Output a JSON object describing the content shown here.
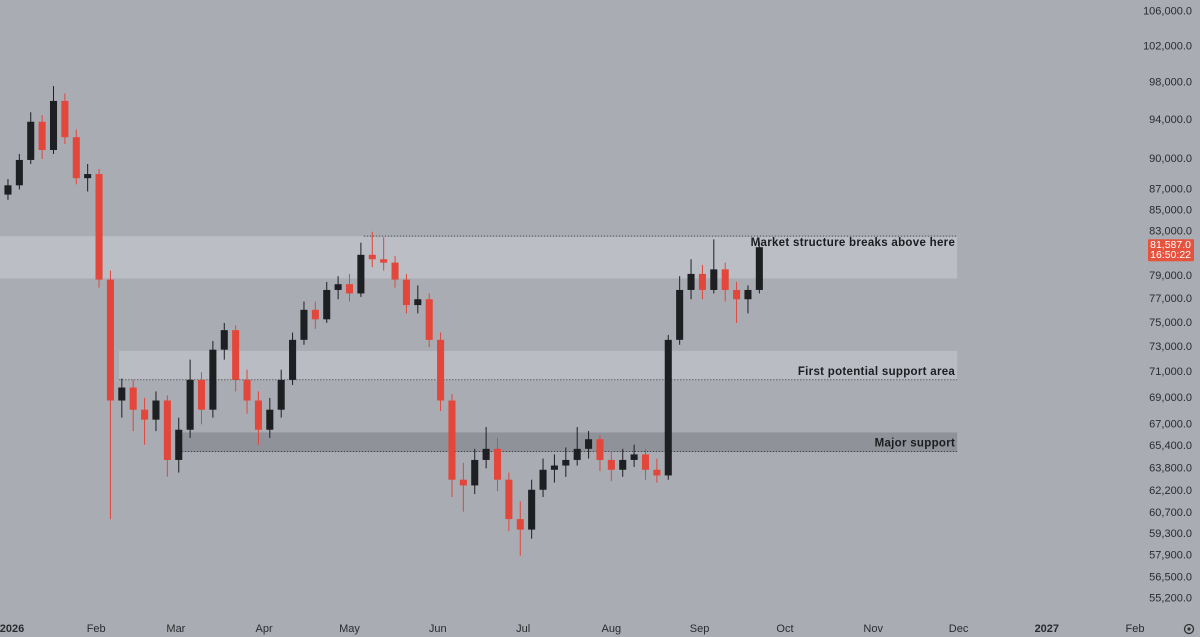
{
  "chart_data": {
    "type": "candlestick",
    "log_scale": true,
    "up_color": "#1e1f22",
    "down_color": "#e3463a",
    "background": "#a9acb3",
    "xlim": [
      -2.8,
      399.5
    ],
    "ylim": [
      53900,
      107400
    ],
    "xticks": [
      {
        "value": 0,
        "label": "2026"
      },
      {
        "value": 31,
        "label": "Feb"
      },
      {
        "value": 59,
        "label": "Mar"
      },
      {
        "value": 90,
        "label": "Apr"
      },
      {
        "value": 120,
        "label": "May"
      },
      {
        "value": 151,
        "label": "Jun"
      },
      {
        "value": 181,
        "label": "Jul"
      },
      {
        "value": 212,
        "label": "Aug"
      },
      {
        "value": 243,
        "label": "Sep"
      },
      {
        "value": 273,
        "label": "Oct"
      },
      {
        "value": 304,
        "label": "Nov"
      },
      {
        "value": 334,
        "label": "Dec"
      },
      {
        "value": 365,
        "label": "2027"
      },
      {
        "value": 396,
        "label": "Feb"
      }
    ],
    "yticks": [
      {
        "value": 106000,
        "label": "106,000.0"
      },
      {
        "value": 102000,
        "label": "102,000.0"
      },
      {
        "value": 98000,
        "label": "98,000.0"
      },
      {
        "value": 94000,
        "label": "94,000.0"
      },
      {
        "value": 90000,
        "label": "90,000.0"
      },
      {
        "value": 87000,
        "label": "87,000.0"
      },
      {
        "value": 85000,
        "label": "85,000.0"
      },
      {
        "value": 83000,
        "label": "83,000.0"
      },
      {
        "value": 79000,
        "label": "79,000.0"
      },
      {
        "value": 77000,
        "label": "77,000.0"
      },
      {
        "value": 75000,
        "label": "75,000.0"
      },
      {
        "value": 73000,
        "label": "73,000.0"
      },
      {
        "value": 71000,
        "label": "71,000.0"
      },
      {
        "value": 69000,
        "label": "69,000.0"
      },
      {
        "value": 67000,
        "label": "67,000.0"
      },
      {
        "value": 65400,
        "label": "65,400.0"
      },
      {
        "value": 63800,
        "label": "63,800.0"
      },
      {
        "value": 62200,
        "label": "62,200.0"
      },
      {
        "value": 60700,
        "label": "60,700.0"
      },
      {
        "value": 59300,
        "label": "59,300.0"
      },
      {
        "value": 57900,
        "label": "57,900.0"
      },
      {
        "value": 56500,
        "label": "56,500.0"
      },
      {
        "value": 55200,
        "label": "55,200.0"
      }
    ],
    "x": [
      0,
      4,
      8,
      12,
      16,
      20,
      24,
      28,
      32,
      36,
      40,
      44,
      48,
      52,
      56,
      60,
      64,
      68,
      72,
      76,
      80,
      84,
      88,
      92,
      96,
      100,
      104,
      108,
      112,
      116,
      120,
      124,
      128,
      132,
      136,
      140,
      144,
      148,
      152,
      156,
      160,
      164,
      168,
      172,
      176,
      180,
      184,
      188,
      192,
      196,
      200,
      204,
      208,
      212,
      216,
      220,
      224,
      228,
      232,
      236,
      240,
      244,
      248,
      252,
      256,
      260,
      264
    ],
    "open": [
      86500,
      87400,
      89900,
      93800,
      90900,
      96000,
      92200,
      88100,
      88500,
      78700,
      68800,
      69800,
      68100,
      67350,
      68800,
      64400,
      66600,
      70400,
      68100,
      72800,
      74400,
      70400,
      68800,
      66600,
      68100,
      70400,
      73600,
      76100,
      75300,
      77800,
      78300,
      77500,
      80900,
      80500,
      80200,
      78700,
      76500,
      77000,
      73600,
      68800,
      63000,
      62600,
      64400,
      65200,
      63000,
      60300,
      59600,
      62300,
      63700,
      64000,
      64400,
      65200,
      65900,
      64400,
      63700,
      64400,
      64800,
      63700,
      63300,
      73600,
      77800,
      79200,
      77800,
      79600,
      77800,
      77000,
      77800
    ],
    "high": [
      88000,
      90500,
      94800,
      94500,
      97600,
      96800,
      93000,
      89500,
      89000,
      79500,
      70500,
      70400,
      69000,
      69500,
      69200,
      67500,
      72000,
      71000,
      73500,
      75000,
      74800,
      71200,
      69500,
      69000,
      71200,
      74200,
      76800,
      76800,
      78500,
      79000,
      79200,
      82000,
      83000,
      82500,
      80800,
      79200,
      78200,
      77500,
      74200,
      69300,
      64200,
      65200,
      66800,
      66000,
      63500,
      61500,
      63000,
      64500,
      64800,
      65300,
      66800,
      66500,
      66200,
      65000,
      65200,
      65500,
      65200,
      64500,
      74000,
      79000,
      80500,
      80000,
      82300,
      80200,
      78500,
      78200,
      82100
    ],
    "low": [
      86000,
      87000,
      89500,
      90000,
      90500,
      91500,
      87500,
      86800,
      78000,
      60300,
      67500,
      66500,
      65500,
      66500,
      63200,
      63500,
      66000,
      67000,
      67500,
      72000,
      69500,
      67800,
      65500,
      66000,
      67500,
      70000,
      73200,
      74500,
      75000,
      77000,
      76800,
      77200,
      79800,
      79500,
      78000,
      75800,
      75800,
      73000,
      68000,
      61800,
      60800,
      62000,
      63800,
      62200,
      59500,
      57900,
      59000,
      61800,
      62800,
      63200,
      64000,
      64500,
      63600,
      62900,
      63200,
      63900,
      63000,
      62800,
      63000,
      73200,
      77000,
      77000,
      77500,
      76800,
      75000,
      75800,
      77500
    ],
    "close": [
      87400,
      89900,
      93800,
      90900,
      96000,
      92200,
      88100,
      88500,
      78700,
      68800,
      69800,
      68100,
      67350,
      68800,
      64400,
      66600,
      70400,
      68100,
      72800,
      74400,
      70400,
      68800,
      66600,
      68100,
      70400,
      73600,
      76100,
      75300,
      77800,
      78300,
      77500,
      80900,
      80500,
      80200,
      78700,
      76500,
      77000,
      73600,
      68800,
      63000,
      62600,
      64400,
      65200,
      63000,
      60300,
      59600,
      62300,
      63700,
      64000,
      64400,
      65200,
      65900,
      64400,
      63700,
      64400,
      64800,
      63700,
      63300,
      73600,
      77800,
      79200,
      77800,
      79600,
      77800,
      77000,
      77800,
      81587
    ],
    "last_price": {
      "value": 81587,
      "label": "81,587.0"
    },
    "countdown": "16:50:22",
    "zones": [
      {
        "label": "Market structure breaks above here",
        "from": 78800,
        "to": 82600,
        "start": -2.8,
        "end": 333.5,
        "color": "#bbbec4",
        "dotted": "top",
        "dotted_start": 125
      },
      {
        "label": "First potential support area",
        "from": 70400,
        "to": 72700,
        "start": 39,
        "end": 333.5,
        "color": "#b9bcc2",
        "dotted": "bottom",
        "dotted_start": 39
      },
      {
        "label": "Major support",
        "from": 65000,
        "to": 66400,
        "start": 60,
        "end": 333.5,
        "color": "#8f9298",
        "dotted": "bottom",
        "dotted_start": 60
      }
    ]
  }
}
